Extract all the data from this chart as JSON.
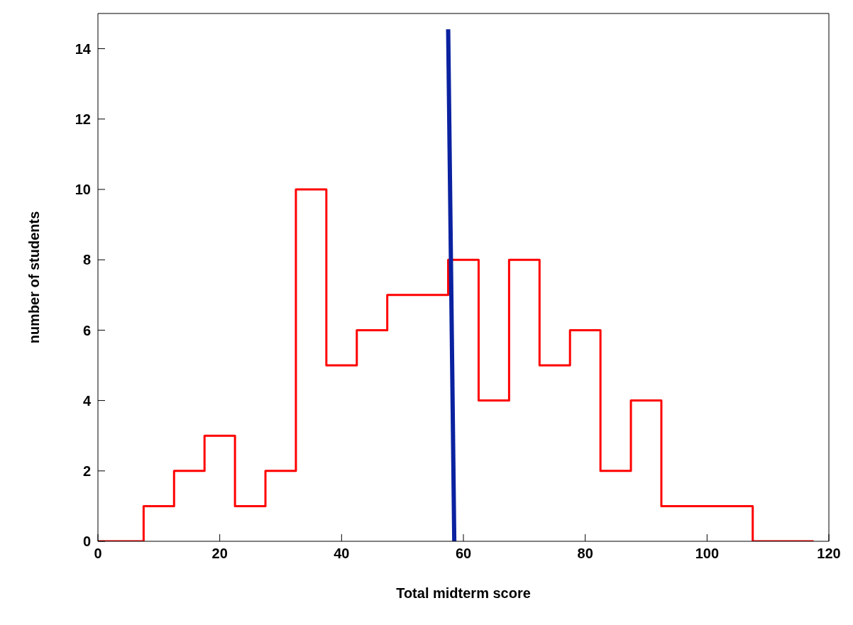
{
  "chart_data": {
    "type": "histogram",
    "xlabel": "Total midterm score",
    "ylabel": "number of students",
    "bins": [
      0,
      7.5,
      12.5,
      17.5,
      22.5,
      27.5,
      32.5,
      37.5,
      42.5,
      47.5,
      52.5,
      57.5,
      62.5,
      67.5,
      72.5,
      77.5,
      82.5,
      87.5,
      92.5,
      97.5,
      102.5,
      107.5,
      117.5
    ],
    "values": [
      0,
      1,
      2,
      3,
      1,
      2,
      10,
      5,
      6,
      7,
      7,
      8,
      4,
      8,
      5,
      6,
      2,
      4,
      1,
      1,
      1,
      0
    ],
    "color": "#ff0000",
    "series": [
      {
        "type": "line",
        "x": [
          58.5,
          57.5
        ],
        "values": [
          0,
          14.55
        ],
        "color": "#0a22a0"
      }
    ],
    "xlim": [
      0,
      120
    ],
    "xticks": [
      0,
      20,
      40,
      60,
      80,
      100,
      120
    ],
    "ylim": [
      0,
      15
    ],
    "yticks": [
      0,
      2,
      4,
      6,
      8,
      10,
      12,
      14
    ],
    "grid": false,
    "legend": false
  }
}
